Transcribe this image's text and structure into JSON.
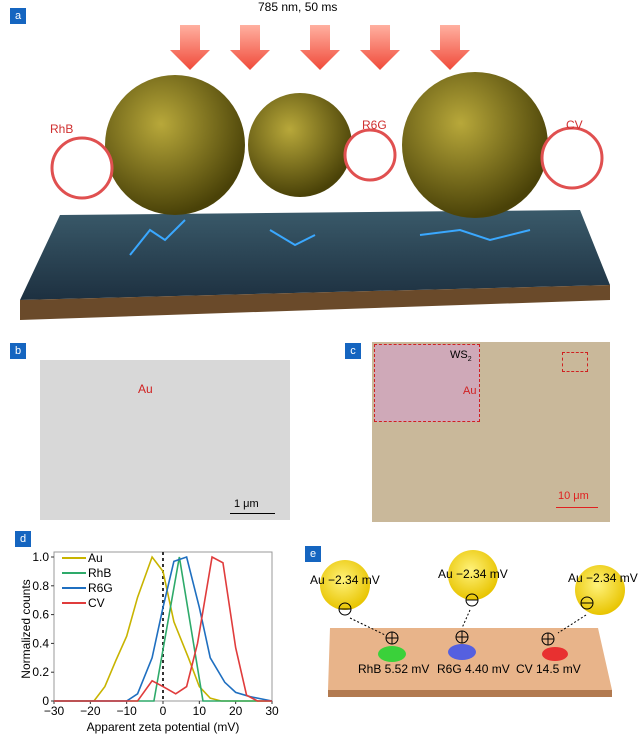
{
  "panels": {
    "a": {
      "label": "a",
      "laser": "785 nm, 50 ms",
      "molecules": [
        "RhB",
        "R6G",
        "CV"
      ]
    },
    "b": {
      "label": "b",
      "annotation": "Au",
      "scale_bar": "1 μm"
    },
    "c": {
      "label": "c",
      "inset_ws2": "WS",
      "inset_ws2_sub": "2",
      "inset_au": "Au",
      "scale_bar": "10 μm"
    },
    "d": {
      "label": "d"
    },
    "e": {
      "label": "e",
      "au_labels": [
        "Au −2.34 mV",
        "Au −2.34 mV",
        "Au −2.34 mV"
      ],
      "dye_labels": [
        "RhB 5.52 mV",
        "R6G 4.40 mV",
        "CV 14.5 mV"
      ],
      "dye_colors": [
        "#3ad13a",
        "#5560e0",
        "#e83030"
      ]
    }
  },
  "chart_data": {
    "type": "line",
    "xlabel": "Apparent zeta potential (mV)",
    "ylabel": "Normalized counts",
    "xlim": [
      -30,
      30
    ],
    "ylim": [
      0,
      1.0
    ],
    "xticks": [
      -30,
      -20,
      -10,
      0,
      10,
      20,
      30
    ],
    "yticks": [
      0,
      0.2,
      0.4,
      0.6,
      0.8,
      1.0
    ],
    "xtick_labels": [
      "−30",
      "−20",
      "−10",
      "0",
      "10",
      "20",
      "30"
    ],
    "ytick_labels": [
      "0",
      "0.2",
      "0.4",
      "0.6",
      "0.8",
      "1.0"
    ],
    "reference_line_x": 0,
    "legend_placement": "top-left",
    "series": [
      {
        "name": "Au",
        "color": "#c8b400",
        "points": [
          [
            -30,
            0
          ],
          [
            -19,
            0
          ],
          [
            -16,
            0.1
          ],
          [
            -13,
            0.28
          ],
          [
            -10,
            0.45
          ],
          [
            -7,
            0.72
          ],
          [
            -3,
            1.0
          ],
          [
            0,
            0.9
          ],
          [
            3,
            0.55
          ],
          [
            7,
            0.3
          ],
          [
            10,
            0.1
          ],
          [
            13,
            0.02
          ],
          [
            16,
            0
          ],
          [
            30,
            0
          ]
        ]
      },
      {
        "name": "RhB",
        "color": "#2eaa6a",
        "points": [
          [
            -30,
            0
          ],
          [
            -2.5,
            0
          ],
          [
            4.5,
            1.0
          ],
          [
            11,
            0
          ],
          [
            30,
            0
          ]
        ]
      },
      {
        "name": "R6G",
        "color": "#1f6fc0",
        "points": [
          [
            -30,
            0
          ],
          [
            -10,
            0
          ],
          [
            -7,
            0.05
          ],
          [
            -3,
            0.3
          ],
          [
            0,
            0.65
          ],
          [
            3,
            0.97
          ],
          [
            6.5,
            1.0
          ],
          [
            10,
            0.65
          ],
          [
            13,
            0.3
          ],
          [
            17,
            0.13
          ],
          [
            20,
            0.06
          ],
          [
            24,
            0.03
          ],
          [
            30,
            0
          ]
        ]
      },
      {
        "name": "CV",
        "color": "#e03c3c",
        "points": [
          [
            -30,
            0
          ],
          [
            -7,
            0
          ],
          [
            -3,
            0.14
          ],
          [
            0,
            0.1
          ],
          [
            3.5,
            0.05
          ],
          [
            6.5,
            0.1
          ],
          [
            9.5,
            0.4
          ],
          [
            13.5,
            1.0
          ],
          [
            16.5,
            0.96
          ],
          [
            20,
            0.37
          ],
          [
            23,
            0.04
          ],
          [
            26,
            0
          ],
          [
            30,
            0
          ]
        ]
      }
    ]
  }
}
